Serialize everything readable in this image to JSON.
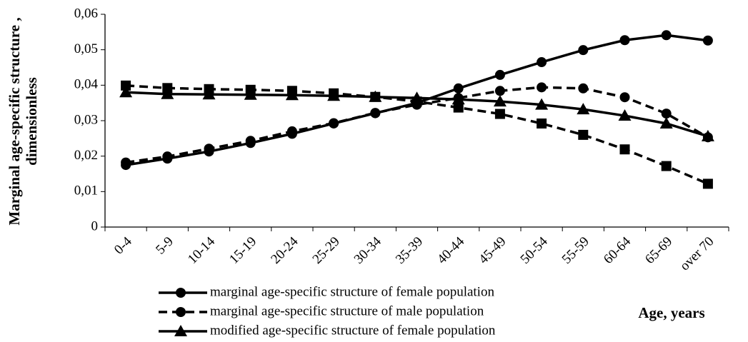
{
  "chart_data": {
    "type": "line",
    "ylabel": [
      "Marginal age-specific structure ,",
      "dimensionless"
    ],
    "xlabel": "Age, years",
    "categories": [
      "0-4",
      "5-9",
      "10-14",
      "15-19",
      "20-24",
      "25-29",
      "30-34",
      "35-39",
      "40-44",
      "45-49",
      "50-54",
      "55-59",
      "60-64",
      "65-69",
      "over 70"
    ],
    "ylim": [
      0,
      0.06
    ],
    "yticks": [
      0,
      {
        "value": 0.01,
        "label": "0,01"
      },
      {
        "value": 0.02,
        "label": "0,02"
      },
      {
        "value": 0.03,
        "label": "0,03"
      },
      {
        "value": 0.04,
        "label": "0,04"
      },
      {
        "value": 0.05,
        "label": "0,05"
      },
      {
        "value": 0.06,
        "label": "0,06"
      }
    ],
    "series": [
      {
        "name": "marginal age-specific structure of female population",
        "color": "#000000",
        "dashed": false,
        "marker": "circle",
        "values": [
          0.0175,
          0.0193,
          0.0213,
          0.0237,
          0.0263,
          0.0292,
          0.0321,
          0.035,
          0.0391,
          0.0429,
          0.0465,
          0.0499,
          0.0527,
          0.0541,
          0.0526
        ]
      },
      {
        "name": "marginal age-specific structure of male population",
        "color": "#000000",
        "dashed": true,
        "marker": "circle",
        "values": [
          0.0182,
          0.0199,
          0.0221,
          0.0243,
          0.027,
          0.0293,
          0.0322,
          0.0345,
          0.0364,
          0.0384,
          0.0394,
          0.0391,
          0.0366,
          0.032,
          0.0253
        ]
      },
      {
        "name": "modified age-specific structure of female population",
        "color": "#000000",
        "dashed": false,
        "marker": "triangle",
        "values": [
          0.038,
          0.0375,
          0.0374,
          0.0373,
          0.0372,
          0.037,
          0.0367,
          0.0364,
          0.036,
          0.0354,
          0.0345,
          0.0332,
          0.0314,
          0.0292,
          0.0256
        ]
      },
      {
        "color": "#000000",
        "dashed": true,
        "marker": "square",
        "values": [
          0.0399,
          0.0392,
          0.0389,
          0.0387,
          0.0384,
          0.0377,
          0.0367,
          0.0354,
          0.0337,
          0.0319,
          0.0292,
          0.026,
          0.0219,
          0.0172,
          0.0122
        ]
      }
    ]
  }
}
